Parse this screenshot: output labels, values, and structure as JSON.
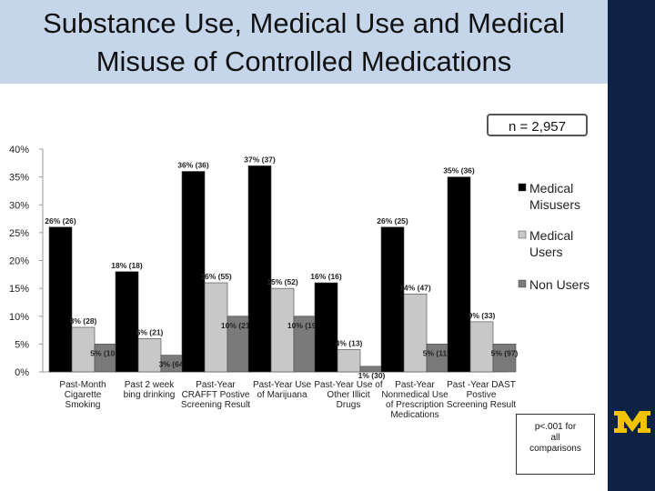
{
  "slide": {
    "title_line1": "Substance Use, Medical Use and Medical",
    "title_line2": "Misuse of Controlled Medications",
    "n_label": "n = 2,957",
    "note_lines": [
      "p<.001 for",
      "all",
      "comparisons"
    ],
    "colors": {
      "title_bg": "#c5d5ea",
      "sidebar": "#0d2244",
      "logo": "#f3c300"
    }
  },
  "chart_data": {
    "type": "bar",
    "categories": [
      [
        "Past-Month",
        "Cigarette",
        "Smoking"
      ],
      [
        "Past 2 week",
        "bing drinking"
      ],
      [
        "Past-Year",
        "CRAFFT Postive",
        "Screening Result"
      ],
      [
        "Past-Year Use",
        "of Marijuana"
      ],
      [
        "Past-Year Use of",
        "Other Illicit",
        "Drugs"
      ],
      [
        "Past-Year",
        "Nonmedical Use",
        "of Prescription",
        "Medications"
      ],
      [
        "Past -Year DAST",
        "Postive",
        "Screening Result"
      ]
    ],
    "series": [
      {
        "name": "Medical Misusers",
        "values": [
          26,
          18,
          36,
          37,
          16,
          26,
          35
        ],
        "labels": [
          "26% (26)",
          "18% (18)",
          "36% (36)",
          "37% (37)",
          "16% (16)",
          "26% (25)",
          "35% (36)"
        ],
        "color": "#000000",
        "legend_lines": [
          "Medical",
          "Misusers"
        ]
      },
      {
        "name": "Medical Users",
        "values": [
          8,
          6,
          16,
          15,
          4,
          14,
          9
        ],
        "labels": [
          "8% (28)",
          "6% (21)",
          "16% (55)",
          "15% (52)",
          "4% (13)",
          "14% (47)",
          "9% (33)"
        ],
        "color": "#c8c8c8",
        "legend_lines": [
          "Medical",
          "Users"
        ]
      },
      {
        "name": "Non Users",
        "values": [
          5,
          3,
          10,
          10,
          1,
          5,
          5
        ],
        "labels": [
          "5% (103)",
          "3% (64)",
          "10% (210)",
          "10% (198)",
          "1% (30)",
          "5% (111)",
          "5% (97)"
        ],
        "color": "#7a7a7a",
        "legend_lines": [
          "Non Users"
        ]
      }
    ],
    "yticks": [
      "0%",
      "5%",
      "10%",
      "15%",
      "20%",
      "25%",
      "30%",
      "35%",
      "40%"
    ],
    "ylim": [
      0,
      40
    ],
    "grid": false,
    "legend_position": "right"
  }
}
